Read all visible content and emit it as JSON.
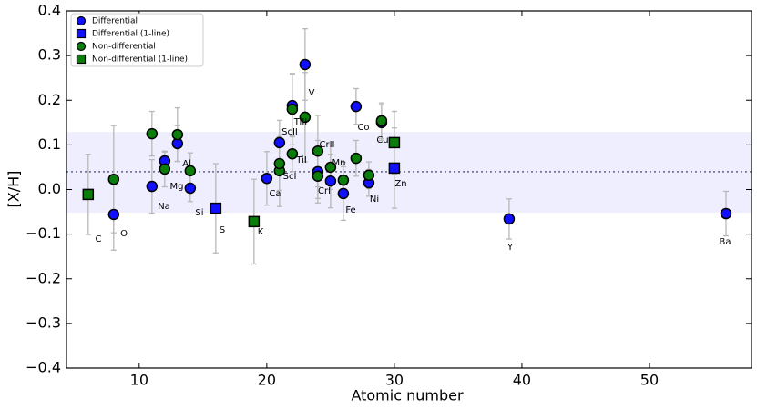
{
  "chart_data": {
    "type": "scatter",
    "x_label": "Atomic number",
    "y_label": "[X/H]",
    "xlim": [
      4.3,
      58
    ],
    "ylim": [
      -0.4,
      0.4
    ],
    "xticks": [
      10,
      20,
      30,
      40,
      50
    ],
    "yticks": [
      {
        "value": -0.4,
        "label": "−0.4"
      },
      {
        "value": -0.3,
        "label": "−0.3"
      },
      {
        "value": -0.2,
        "label": "−0.2"
      },
      {
        "value": -0.1,
        "label": "−0.1"
      },
      {
        "value": 0.0,
        "label": "0.0"
      },
      0.1,
      0.2,
      0.3,
      0.4
    ],
    "band": [
      -0.052,
      0.129
    ],
    "band_color": "#eeeeff",
    "hline": 0.04,
    "legend_position": "upper left",
    "series": [
      {
        "name": "Differential",
        "marker": "circle",
        "color": "#1010ff",
        "x": [
          8,
          11,
          12,
          13,
          14,
          20,
          21,
          22,
          23,
          24,
          25,
          26,
          27,
          28,
          29,
          39,
          56
        ],
        "values": [
          -0.056,
          0.007,
          0.064,
          0.103,
          0.003,
          0.025,
          0.105,
          0.188,
          0.28,
          0.04,
          0.019,
          -0.009,
          0.186,
          0.015,
          0.15,
          -0.066,
          -0.054
        ],
        "errors": [
          0.08,
          0.06,
          0.02,
          0.04,
          0.03,
          0.06,
          0.05,
          0.07,
          0.08,
          0.07,
          0.06,
          0.06,
          0.04,
          0.03,
          0.04,
          0.045,
          0.05
        ]
      },
      {
        "name": "Differential (1-line)",
        "marker": "square",
        "color": "#1010ff",
        "x": [
          16,
          30
        ],
        "values": [
          -0.042,
          0.048
        ],
        "errors": [
          0.1,
          0.09
        ]
      },
      {
        "name": "Non-differential",
        "marker": "circle",
        "color": "#0a7d0a",
        "x": [
          8,
          11,
          12,
          13,
          14,
          21,
          21,
          22,
          22,
          23,
          24,
          24,
          25,
          26,
          27,
          28,
          29
        ],
        "values": [
          0.023,
          0.125,
          0.046,
          0.123,
          0.042,
          0.042,
          0.058,
          0.08,
          0.18,
          0.162,
          0.086,
          0.03,
          0.05,
          0.021,
          0.07,
          0.032,
          0.154
        ],
        "errors": [
          0.12,
          0.05,
          0.04,
          0.06,
          0.04,
          0.08,
          0.06,
          0.04,
          0.08,
          0.1,
          0.08,
          0.05,
          0.05,
          0.04,
          0.04,
          0.03,
          0.04
        ]
      },
      {
        "name": "Non-differential (1-line)",
        "marker": "square",
        "color": "#0a7d0a",
        "x": [
          6,
          19,
          30
        ],
        "values": [
          -0.011,
          -0.072,
          0.105
        ],
        "errors": [
          0.09,
          0.095,
          0.07
        ]
      }
    ],
    "annotations": [
      "C",
      "O",
      "Na",
      "Mg",
      "Al",
      "Si",
      "S",
      "K",
      "Ca",
      "ScI",
      "ScII",
      "TiI",
      "TiII",
      "V",
      "CrI",
      "CrII",
      "Mn",
      "Fe",
      "Co",
      "Ni",
      "Cu",
      "Zn",
      "Y",
      "Ba"
    ]
  }
}
